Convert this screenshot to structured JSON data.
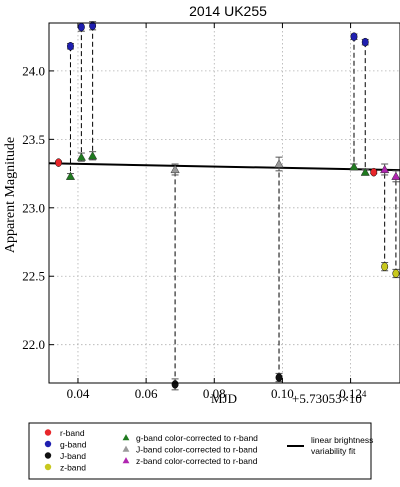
{
  "chart_data": {
    "type": "scatter",
    "title": "2014 UK255",
    "xlabel": "MJD",
    "x_offset_label": "+5.73053×10",
    "x_offset_exponent": "4",
    "ylabel": "Apparent Magnitude",
    "xlim": [
      0.0315,
      0.1345
    ],
    "ylim": [
      21.72,
      24.35
    ],
    "y_inverted": true,
    "grid": true,
    "x_ticks": [
      0.04,
      0.06,
      0.08,
      0.1,
      0.12
    ],
    "x_tick_labels": [
      "0.04",
      "0.06",
      "0.08",
      "0.10",
      "0.12"
    ],
    "y_ticks": [
      22.0,
      22.5,
      23.0,
      23.5,
      24.0
    ],
    "y_tick_labels": [
      "22.0",
      "22.5",
      "23.0",
      "23.5",
      "24.0"
    ],
    "series": [
      {
        "name": "r-band",
        "marker": "circle",
        "color": "#e8262a",
        "points": [
          {
            "x": 0.0343,
            "y": 23.33,
            "err": 0.01
          },
          {
            "x": 0.1268,
            "y": 23.26,
            "err": 0.01
          }
        ]
      },
      {
        "name": "g-band",
        "marker": "circle",
        "color": "#1f1fb0",
        "points": [
          {
            "x": 0.0378,
            "y": 24.18,
            "err": 0.02
          },
          {
            "x": 0.041,
            "y": 24.32,
            "err": 0.03
          },
          {
            "x": 0.0443,
            "y": 24.33,
            "err": 0.03
          },
          {
            "x": 0.121,
            "y": 24.25,
            "err": 0.02
          },
          {
            "x": 0.1243,
            "y": 24.21,
            "err": 0.02
          }
        ]
      },
      {
        "name": "J-band",
        "marker": "circle",
        "color": "#111111",
        "points": [
          {
            "x": 0.0685,
            "y": 21.71,
            "err": 0.04
          },
          {
            "x": 0.099,
            "y": 21.76,
            "err": 0.03
          }
        ]
      },
      {
        "name": "z-band",
        "marker": "circle",
        "color": "#c8c81e",
        "points": [
          {
            "x": 0.13,
            "y": 22.57,
            "err": 0.03
          },
          {
            "x": 0.1333,
            "y": 22.52,
            "err": 0.03
          }
        ]
      },
      {
        "name": "g-band color-corrected to r-band",
        "marker": "triangle",
        "color": "#1f7a1f",
        "points": [
          {
            "x": 0.0378,
            "y": 23.23,
            "err": 0.02
          },
          {
            "x": 0.041,
            "y": 23.37,
            "err": 0.03
          },
          {
            "x": 0.0443,
            "y": 23.38,
            "err": 0.03
          },
          {
            "x": 0.121,
            "y": 23.3,
            "err": 0.02
          },
          {
            "x": 0.1243,
            "y": 23.26,
            "err": 0.02
          }
        ]
      },
      {
        "name": "J-band color-corrected to r-band",
        "marker": "triangle",
        "color": "#9a9a9a",
        "points": [
          {
            "x": 0.0685,
            "y": 23.28,
            "err": 0.04
          },
          {
            "x": 0.099,
            "y": 23.32,
            "err": 0.05
          }
        ]
      },
      {
        "name": "z-band color-corrected to r-band",
        "marker": "triangle",
        "color": "#b026b0",
        "points": [
          {
            "x": 0.13,
            "y": 23.28,
            "err": 0.04
          },
          {
            "x": 0.1333,
            "y": 23.23,
            "err": 0.04
          }
        ]
      }
    ],
    "fit_line": {
      "name": "linear brightness variability fit",
      "color": "#000000",
      "x": [
        0.0315,
        0.1345
      ],
      "y": [
        23.325,
        23.275
      ]
    },
    "legend": {
      "placement": "bottom",
      "col1": [
        "r-band",
        "g-band",
        "J-band",
        "z-band"
      ],
      "col2": [
        "g-band color-corrected to r-band",
        "J-band color-corrected to r-band",
        "z-band color-corrected to r-band"
      ],
      "col3_line1": "linear brightness",
      "col3_line2": "variability fit"
    }
  }
}
